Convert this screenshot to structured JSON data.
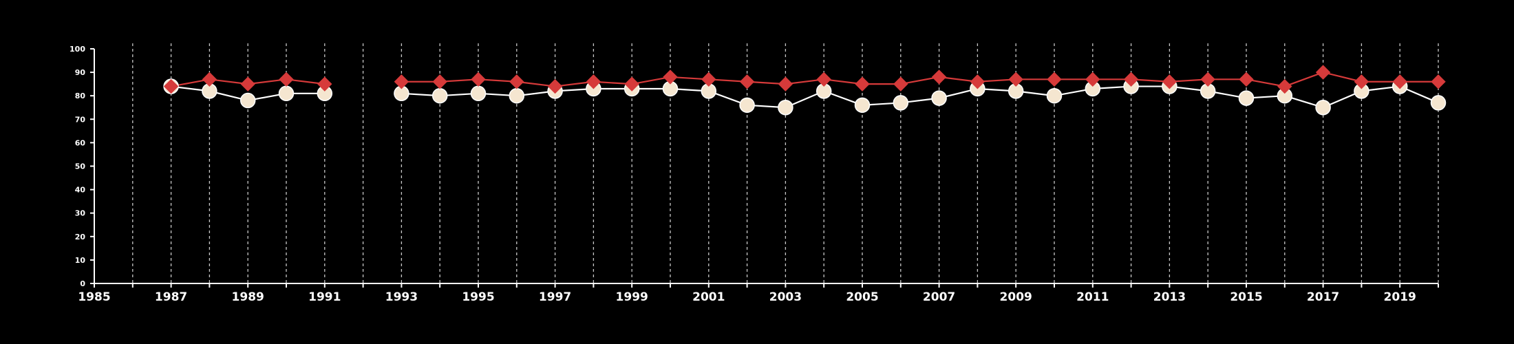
{
  "chart_data": {
    "type": "line",
    "title": "",
    "xlabel": "",
    "ylabel": "",
    "xlim": [
      1985,
      2020
    ],
    "ylim": [
      0,
      100
    ],
    "y_ticks": [
      0,
      10,
      20,
      30,
      40,
      50,
      60,
      70,
      80,
      90,
      100
    ],
    "x_ticks": [
      1985,
      1987,
      1989,
      1991,
      1993,
      1995,
      1997,
      1999,
      2001,
      2003,
      2005,
      2007,
      2009,
      2011,
      2013,
      2015,
      2017,
      2019
    ],
    "y_tick_labels": [
      "0",
      "10",
      "20",
      "30",
      "40",
      "50",
      "60",
      "70",
      "80",
      "90",
      "100"
    ],
    "x_tick_labels": [
      "1985",
      "1987",
      "1989",
      "1991",
      "1993",
      "1995",
      "1997",
      "1999",
      "2001",
      "2003",
      "2005",
      "2007",
      "2009",
      "2011",
      "2013",
      "2015",
      "2017",
      "2019"
    ],
    "vertical_gridlines": "dashed, every year",
    "grid": true,
    "series": [
      {
        "marker": "circle",
        "color": "#f5e6d0",
        "line_color": "#ffffff",
        "x": [
          1987,
          1988,
          1989,
          1990,
          1991,
          1993,
          1994,
          1995,
          1996,
          1997,
          1998,
          1999,
          2000,
          2001,
          2002,
          2003,
          2004,
          2005,
          2006,
          2007,
          2008,
          2009,
          2010,
          2011,
          2012,
          2013,
          2014,
          2015,
          2016,
          2017,
          2018,
          2019,
          2020
        ],
        "y": [
          84,
          82,
          78,
          81,
          81,
          81,
          80,
          81,
          80,
          82,
          83,
          83,
          83,
          82,
          76,
          75,
          82,
          76,
          77,
          79,
          83,
          82,
          80,
          83,
          84,
          84,
          82,
          79,
          80,
          75,
          82,
          84,
          77
        ]
      },
      {
        "marker": "diamond",
        "color": "#d63a3a",
        "line_color": "#d63a3a",
        "x": [
          1987,
          1988,
          1989,
          1990,
          1991,
          1993,
          1994,
          1995,
          1996,
          1997,
          1998,
          1999,
          2000,
          2001,
          2002,
          2003,
          2004,
          2005,
          2006,
          2007,
          2008,
          2009,
          2010,
          2011,
          2012,
          2013,
          2014,
          2015,
          2016,
          2017,
          2018,
          2019,
          2020
        ],
        "y": [
          84,
          87,
          85,
          87,
          85,
          86,
          86,
          87,
          86,
          84,
          86,
          85,
          88,
          87,
          86,
          85,
          87,
          85,
          85,
          88,
          86,
          87,
          87,
          87,
          87,
          86,
          87,
          87,
          84,
          90,
          86,
          86,
          86
        ]
      }
    ]
  }
}
